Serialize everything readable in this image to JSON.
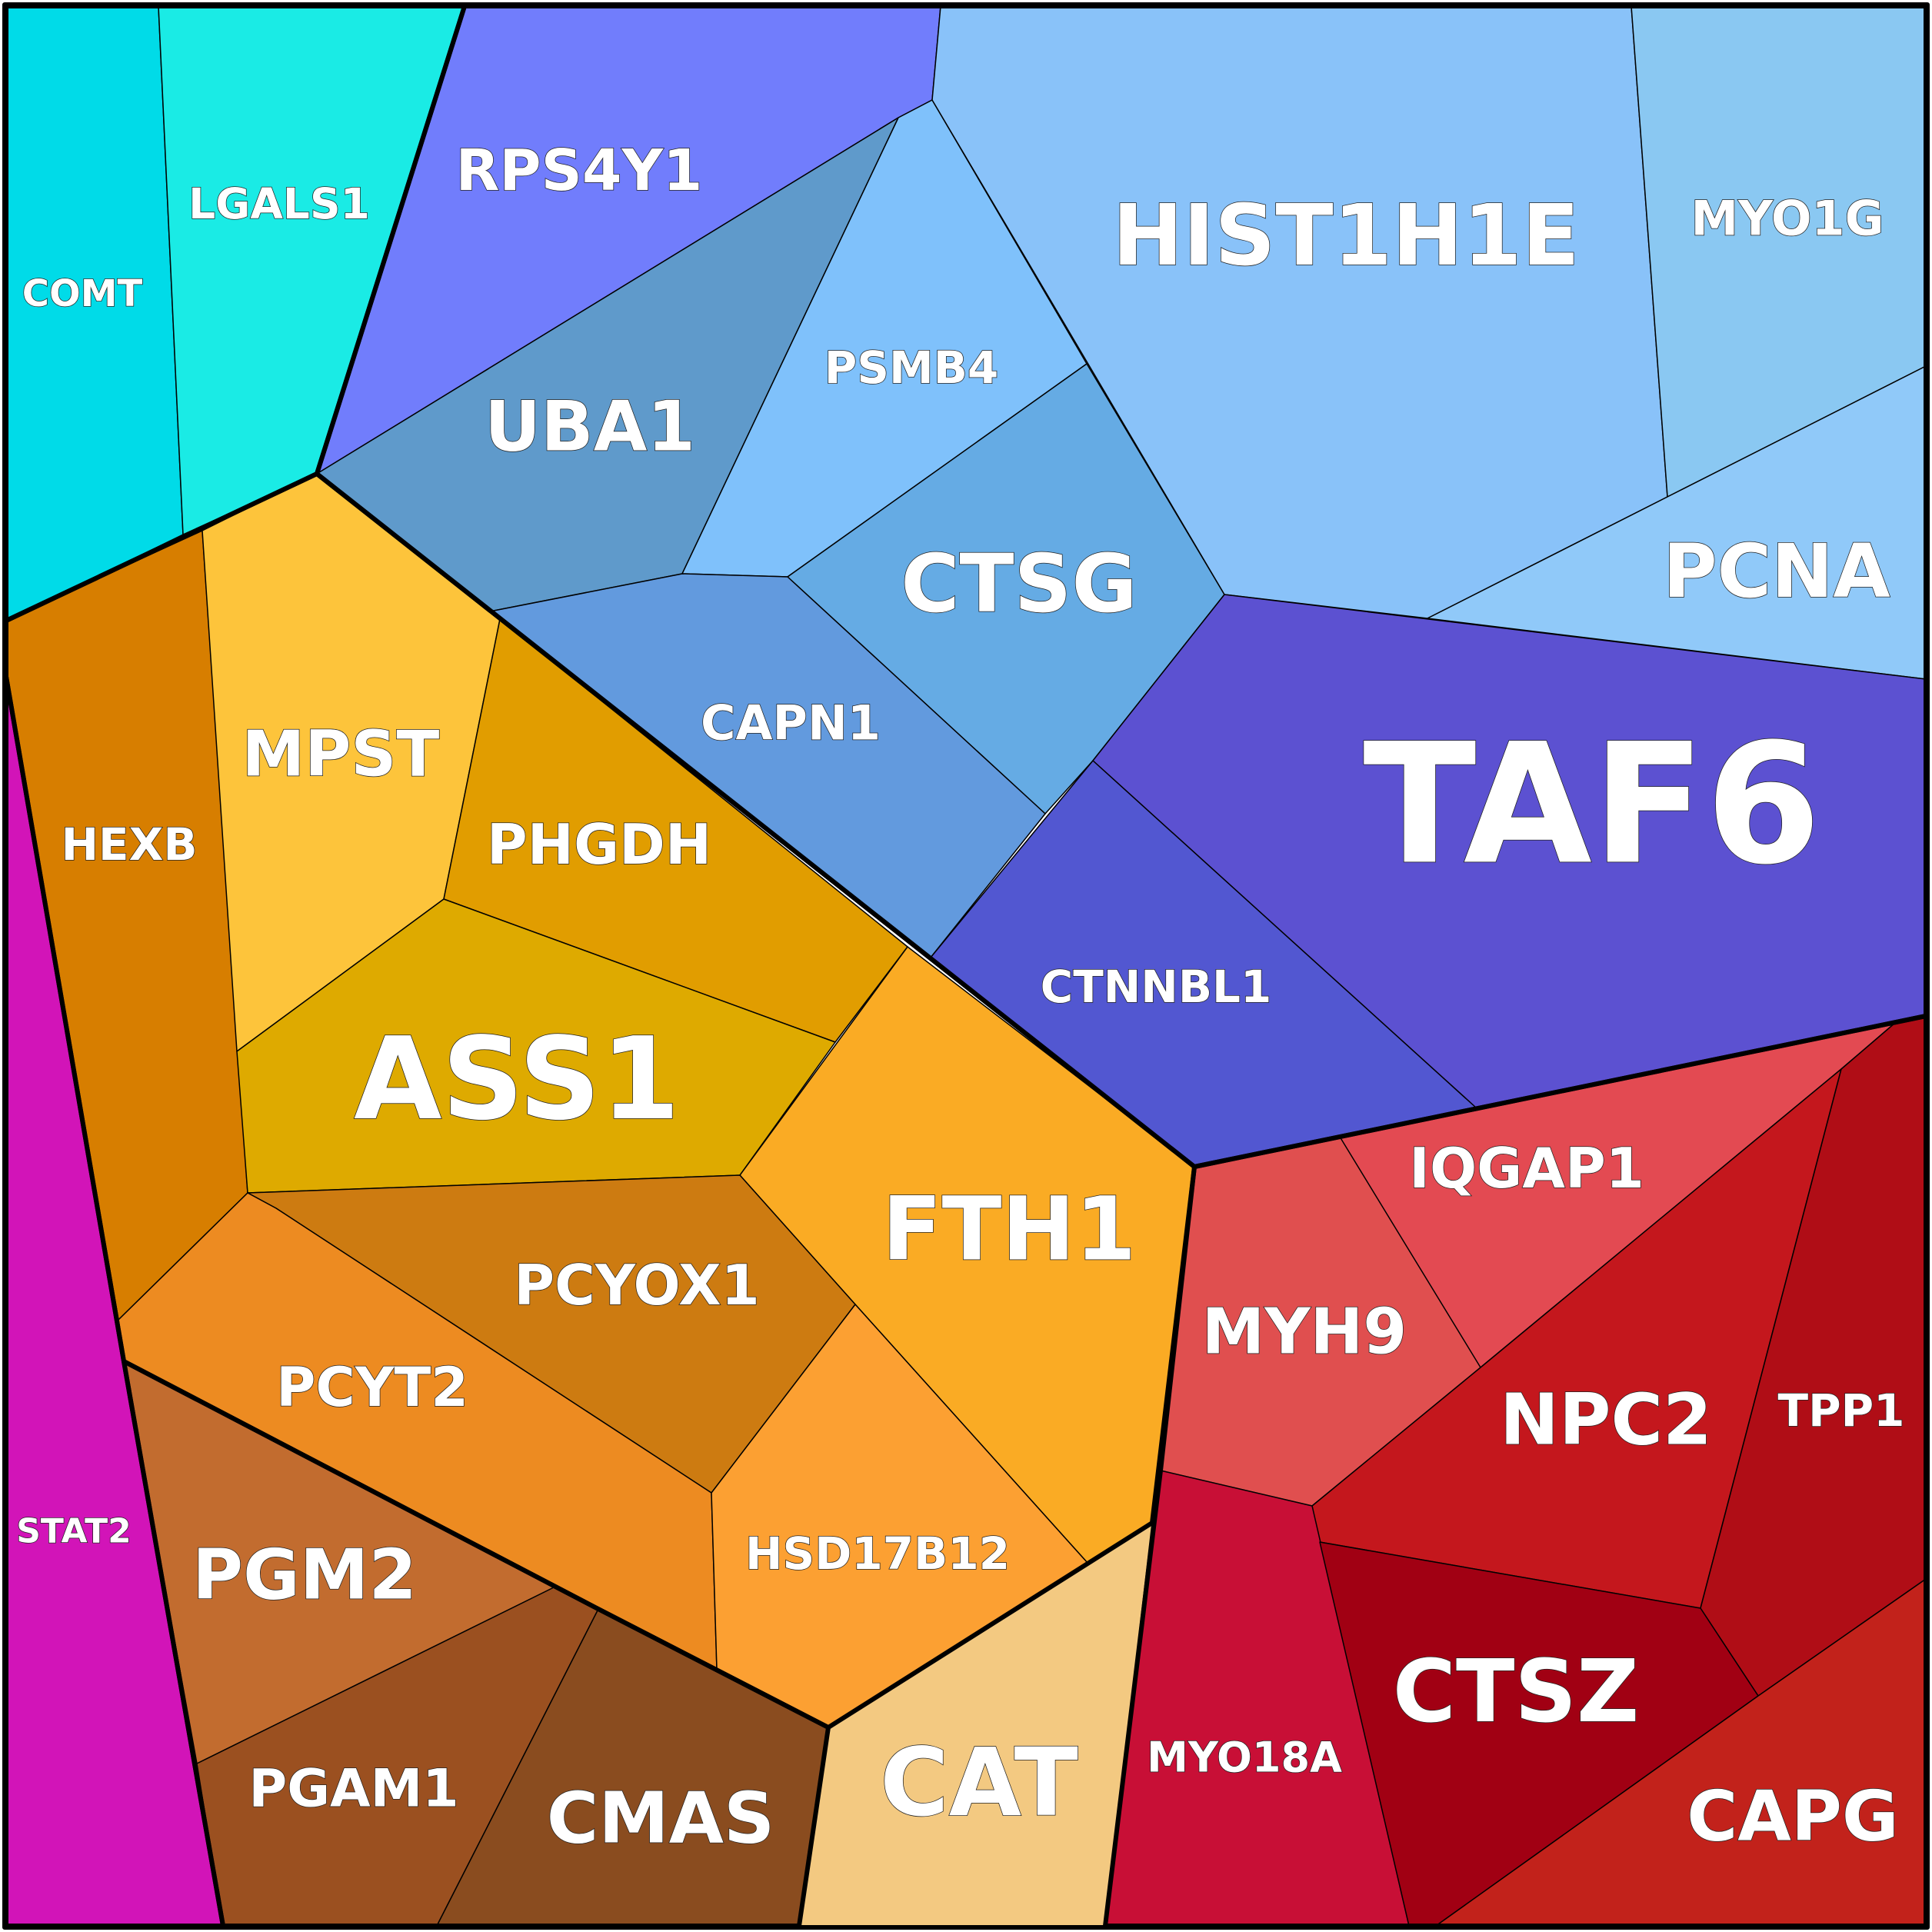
{
  "chart_data": {
    "type": "voronoi-treemap",
    "cells": [
      {
        "id": "COMT",
        "label": "COMT",
        "color": "#00dbe8"
      },
      {
        "id": "LGALS1",
        "label": "LGALS1",
        "color": "#1aebe5"
      },
      {
        "id": "RPS4Y1",
        "label": "RPS4Y1",
        "color": "#717dfc"
      },
      {
        "id": "UBA1",
        "label": "UBA1",
        "color": "#5f9acb"
      },
      {
        "id": "PSMB4",
        "label": "PSMB4",
        "color": "#7fc1fb"
      },
      {
        "id": "CTSG",
        "label": "CTSG",
        "color": "#65abe4"
      },
      {
        "id": "HIST1H1E",
        "label": "HIST1H1E",
        "color": "#89c2f9"
      },
      {
        "id": "MYO1G",
        "label": "MYO1G",
        "color": "#8ac8f2"
      },
      {
        "id": "PCNA",
        "label": "PCNA",
        "color": "#90c9f9"
      },
      {
        "id": "CAPN1",
        "label": "CAPN1",
        "color": "#629ade"
      },
      {
        "id": "TAF6",
        "label": "TAF6",
        "color": "#5c51d1"
      },
      {
        "id": "CTNNBL1",
        "label": "CTNNBL1",
        "color": "#5257d1"
      },
      {
        "id": "HEXB",
        "label": "HEXB",
        "color": "#d77e00"
      },
      {
        "id": "MPST",
        "label": "MPST",
        "color": "#fdc43b"
      },
      {
        "id": "PHGDH",
        "label": "PHGDH",
        "color": "#e19d00"
      },
      {
        "id": "ASS1",
        "label": "ASS1",
        "color": "#deaa00"
      },
      {
        "id": "FTH1",
        "label": "FTH1",
        "color": "#faab24"
      },
      {
        "id": "PCYOX1",
        "label": "PCYOX1",
        "color": "#cd7b11"
      },
      {
        "id": "PCYT2",
        "label": "PCYT2",
        "color": "#ed8b21"
      },
      {
        "id": "HSD17B12",
        "label": "HSD17B12",
        "color": "#fca032"
      },
      {
        "id": "STAT2",
        "label": "STAT2",
        "color": "#d214b8"
      },
      {
        "id": "PGM2",
        "label": "PGM2",
        "color": "#c26c2f"
      },
      {
        "id": "PGAM1",
        "label": "PGAM1",
        "color": "#9b5020"
      },
      {
        "id": "CMAS",
        "label": "CMAS",
        "color": "#8a4c1f"
      },
      {
        "id": "CAT",
        "label": "CAT",
        "color": "#f3c981"
      },
      {
        "id": "IQGAP1",
        "label": "IQGAP1",
        "color": "#e34a52"
      },
      {
        "id": "MYH9",
        "label": "MYH9",
        "color": "#e04f4f"
      },
      {
        "id": "NPC2",
        "label": "NPC2",
        "color": "#c4171d"
      },
      {
        "id": "TPP1",
        "label": "TPP1",
        "color": "#b00d16"
      },
      {
        "id": "MYO18A",
        "label": "MYO18A",
        "color": "#c80f36"
      },
      {
        "id": "CTSZ",
        "label": "CTSZ",
        "color": "#a10013"
      },
      {
        "id": "CAPG",
        "label": "CAPG",
        "color": "#c2221b"
      }
    ]
  }
}
